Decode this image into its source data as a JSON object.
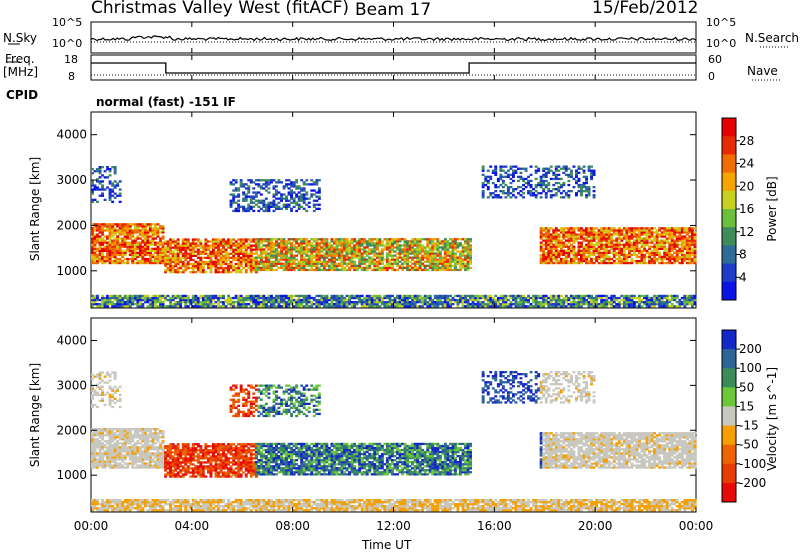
{
  "header": {
    "station": "Christmas Valley West (fitACF)",
    "beam": "Beam 17",
    "date": "15/Feb/2012"
  },
  "left_labels": {
    "nsky": "N.Sky",
    "freq_line1": "Freq.",
    "freq_line2": "[MHz]",
    "cpid": "CPID"
  },
  "right_labels": {
    "nsearch": "N.Search",
    "nave": "Nave"
  },
  "cpid_text": "normal (fast) -151 IF",
  "colors": {
    "black": "#000000",
    "power_scale": [
      "#0a14e6",
      "#1e3cc8",
      "#2e6b96",
      "#3f8c5a",
      "#6cbf3a",
      "#c8d21e",
      "#f5a500",
      "#f06d00",
      "#e82a00",
      "#e60000"
    ],
    "velocity_scale": [
      "#1428c8",
      "#2e6496",
      "#3a8c5a",
      "#6cc83a",
      "#c8c8c0",
      "#f5a000",
      "#f06400",
      "#e83c00",
      "#e60a0a"
    ]
  },
  "chart_data": [
    {
      "type": "line",
      "panel": "noise",
      "left_axis": {
        "ticks": [
          "10^5",
          "10^0"
        ]
      },
      "right_axis": {
        "ticks": [
          "10^5",
          "10^0"
        ]
      }
    },
    {
      "type": "line",
      "panel": "frequency",
      "left_axis": {
        "ticks": [
          "18",
          "8"
        ]
      },
      "right_axis": {
        "ticks": [
          "60",
          "0"
        ]
      },
      "frequency_steps": [
        {
          "from": "00:00",
          "to": "02:58",
          "value": "high"
        },
        {
          "from": "02:58",
          "to": "15:00",
          "value": "low"
        },
        {
          "from": "15:00",
          "to": "24:00",
          "value": "high"
        }
      ]
    },
    {
      "type": "heatmap",
      "panel": "power",
      "ylabel": "Slant Range [km]",
      "yticks": [
        1000,
        2000,
        3000,
        4000
      ],
      "ylim": [
        180,
        4500
      ],
      "colorbar": {
        "label": "Power [dB]",
        "ticks": [
          4,
          8,
          12,
          16,
          20,
          24,
          28
        ]
      }
    },
    {
      "type": "heatmap",
      "panel": "velocity",
      "ylabel": "Slant Range [km]",
      "yticks": [
        1000,
        2000,
        3000,
        4000
      ],
      "ylim": [
        180,
        4500
      ],
      "colorbar": {
        "label": "Velocity [m s^-1]",
        "ticks": [
          200,
          100,
          50,
          15,
          -15,
          -50,
          -100,
          -200
        ]
      }
    }
  ],
  "x_axis": {
    "label": "Time UT",
    "ticks": [
      "00:00",
      "04:00",
      "08:00",
      "12:00",
      "16:00",
      "20:00",
      "00:00"
    ],
    "range_hours": [
      0,
      24
    ]
  }
}
